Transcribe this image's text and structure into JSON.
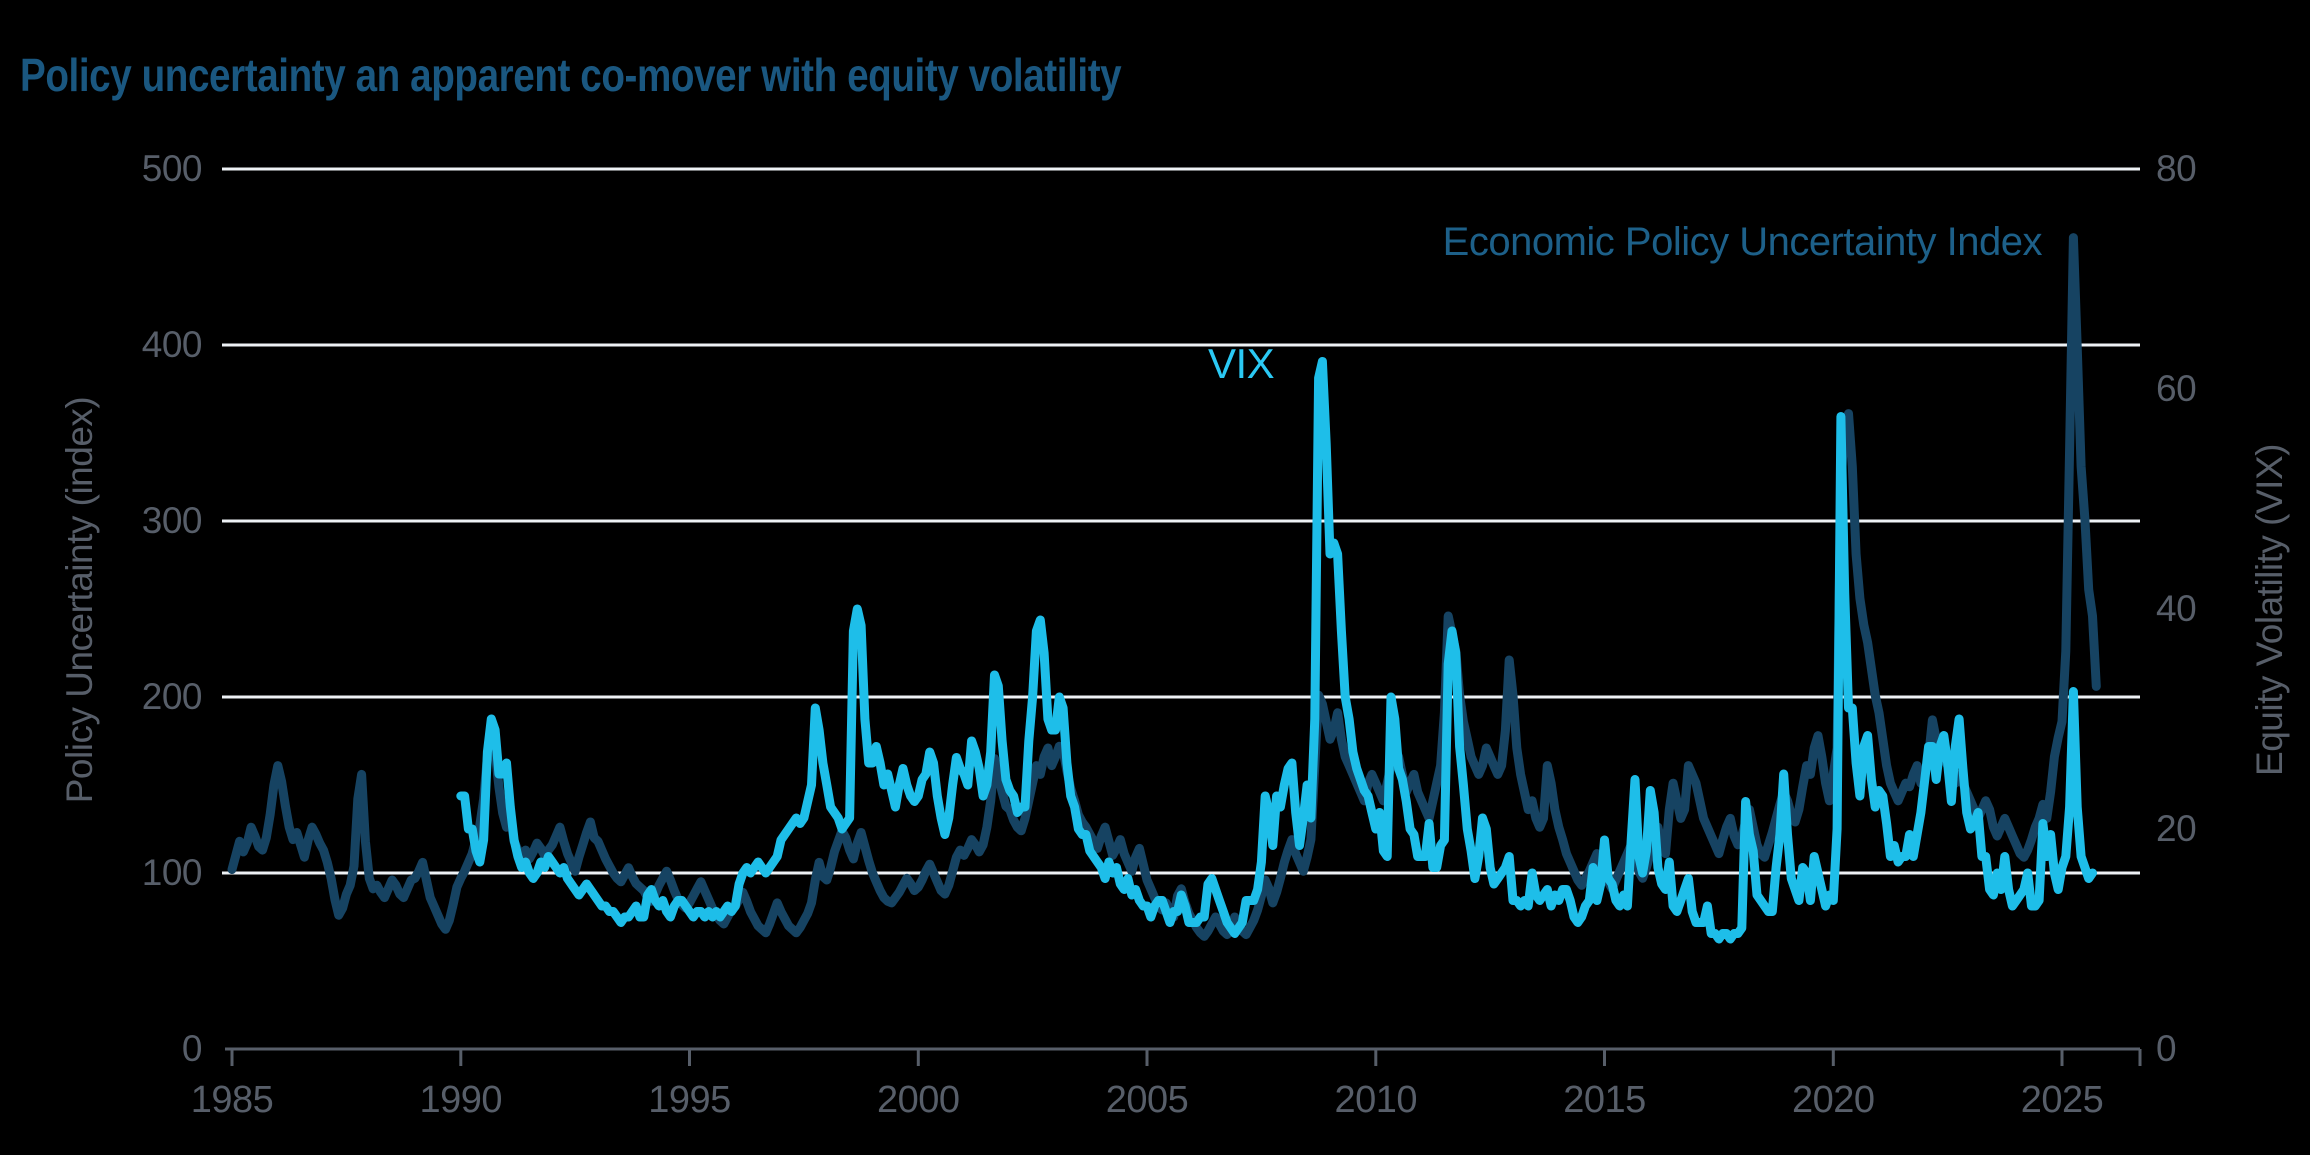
{
  "title": "Policy uncertainty an apparent co-mover with equity volatility",
  "colors": {
    "background": "#000000",
    "title_text": "#1A5780",
    "axis_text": "#575E69",
    "axis_line": "#575E69",
    "gridline": "#EDF1F5",
    "epu_line": "#164362",
    "epu_label": "#1D6089",
    "vix_line": "#1EBEE9",
    "vix_label": "#2BC9F4"
  },
  "chart_data": {
    "type": "line",
    "title": "Policy uncertainty an apparent co-mover with equity volatility",
    "grid": "horizontal white gridlines at left-axis values 100-500, no vertical gridlines",
    "legend_position": "inline text annotations near each series",
    "x_axis": {
      "min": 1985,
      "max": 2026.7,
      "tick_years": [
        1985,
        1990,
        1995,
        2000,
        2005,
        2010,
        2015,
        2020,
        2025
      ]
    },
    "left_axis": {
      "label": "Policy Uncertainty (index)",
      "min": 0,
      "max": 500,
      "ticks": [
        0,
        100,
        200,
        300,
        400,
        500
      ]
    },
    "right_axis": {
      "label": "Equity Volatility (VIX)",
      "min": 0,
      "max": 80,
      "ticks": [
        0,
        20,
        40,
        60,
        80
      ]
    },
    "series": [
      {
        "name": "Economic Policy Uncertainty Index",
        "axis": "left",
        "color": "#164362",
        "start_year": 1985,
        "frequency": "monthly",
        "values": [
          102,
          110,
          118,
          112,
          117,
          126,
          121,
          115,
          113,
          120,
          133,
          150,
          161,
          152,
          138,
          126,
          119,
          123,
          116,
          109,
          119,
          126,
          122,
          117,
          113,
          106,
          97,
          85,
          76,
          80,
          88,
          93,
          104,
          142,
          156,
          118,
          97,
          91,
          93,
          89,
          86,
          91,
          96,
          93,
          88,
          86,
          91,
          96,
          97,
          101,
          106,
          96,
          86,
          81,
          76,
          71,
          68,
          73,
          82,
          92,
          97,
          101,
          106,
          111,
          119,
          127,
          142,
          166,
          177,
          169,
          149,
          134,
          126,
          133,
          118,
          113,
          110,
          113,
          108,
          112,
          117,
          114,
          110,
          113,
          116,
          121,
          126,
          118,
          111,
          106,
          101,
          109,
          116,
          123,
          129,
          120,
          118,
          113,
          108,
          104,
          100,
          97,
          95,
          99,
          103,
          98,
          94,
          92,
          90,
          86,
          84,
          88,
          93,
          97,
          101,
          96,
          90,
          85,
          82,
          80,
          83,
          87,
          91,
          95,
          90,
          85,
          80,
          76,
          73,
          71,
          75,
          79,
          81,
          85,
          89,
          84,
          78,
          74,
          70,
          68,
          66,
          71,
          77,
          83,
          78,
          74,
          70,
          68,
          66,
          69,
          73,
          77,
          83,
          96,
          106,
          98,
          96,
          103,
          112,
          118,
          124,
          120,
          113,
          108,
          117,
          123,
          115,
          107,
          100,
          95,
          90,
          86,
          84,
          83,
          86,
          89,
          93,
          97,
          94,
          90,
          92,
          96,
          101,
          105,
          100,
          95,
          90,
          88,
          93,
          101,
          109,
          113,
          110,
          114,
          119,
          116,
          112,
          116,
          126,
          141,
          165,
          155,
          146,
          138,
          136,
          130,
          126,
          124,
          131,
          141,
          151,
          161,
          156,
          166,
          171,
          161,
          166,
          172,
          170,
          158,
          148,
          141,
          133,
          129,
          126,
          122,
          118,
          114,
          121,
          126,
          118,
          110,
          114,
          119,
          111,
          106,
          101,
          109,
          114,
          105,
          96,
          91,
          86,
          81,
          79,
          83,
          79,
          75,
          87,
          91,
          83,
          77,
          73,
          69,
          66,
          64,
          67,
          71,
          75,
          71,
          67,
          65,
          69,
          75,
          71,
          67,
          65,
          69,
          73,
          79,
          87,
          96,
          91,
          83,
          89,
          97,
          106,
          113,
          119,
          111,
          106,
          101,
          109,
          119,
          161,
          201,
          196,
          186,
          176,
          181,
          191,
          176,
          166,
          161,
          156,
          151,
          146,
          141,
          151,
          156,
          151,
          146,
          141,
          151,
          161,
          171,
          166,
          156,
          146,
          151,
          156,
          146,
          141,
          136,
          131,
          141,
          151,
          161,
          191,
          246,
          236,
          226,
          201,
          186,
          176,
          166,
          161,
          156,
          161,
          171,
          166,
          161,
          156,
          161,
          181,
          221,
          201,
          171,
          156,
          146,
          136,
          141,
          131,
          126,
          131,
          161,
          151,
          136,
          126,
          119,
          111,
          106,
          101,
          96,
          93,
          97,
          101,
          106,
          111,
          103,
          99,
          95,
          91,
          96,
          101,
          106,
          111,
          116,
          109,
          101,
          97,
          103,
          111,
          119,
          126,
          116,
          111,
          136,
          151,
          141,
          131,
          136,
          161,
          156,
          151,
          141,
          131,
          126,
          121,
          116,
          111,
          119,
          126,
          131,
          121,
          116,
          121,
          129,
          136,
          126,
          116,
          111,
          109,
          116,
          123,
          131,
          139,
          146,
          141,
          133,
          129,
          136,
          149,
          161,
          156,
          171,
          178,
          166,
          151,
          141,
          156,
          171,
          321,
          356,
          361,
          331,
          281,
          256,
          241,
          231,
          216,
          201,
          191,
          176,
          161,
          151,
          146,
          141,
          146,
          151,
          149,
          156,
          161,
          151,
          156,
          166,
          187,
          176,
          171,
          166,
          161,
          156,
          151,
          156,
          151,
          146,
          141,
          136,
          131,
          136,
          141,
          136,
          126,
          121,
          126,
          131,
          126,
          121,
          116,
          111,
          109,
          113,
          119,
          126,
          131,
          139,
          131,
          146,
          166,
          177,
          186,
          226,
          341,
          461,
          399,
          331,
          301,
          261,
          246,
          206
        ]
      },
      {
        "name": "VIX",
        "axis": "right",
        "color": "#1EBEE9",
        "start_year": 1990,
        "frequency": "monthly",
        "values": [
          23,
          23,
          20,
          20,
          18,
          17,
          19,
          27,
          30,
          29,
          25,
          25,
          26,
          22,
          19,
          17.5,
          16.5,
          17,
          16,
          15.5,
          16,
          17,
          16.5,
          17.5,
          17,
          16.5,
          16,
          16.5,
          15.5,
          15,
          14.5,
          14,
          14.5,
          15,
          14.5,
          14,
          13.5,
          13,
          13,
          12.5,
          12.5,
          12,
          11.5,
          12,
          12,
          12.5,
          13,
          12,
          12,
          14,
          14.5,
          13.5,
          13,
          13.5,
          12.5,
          12,
          13,
          13.5,
          13.5,
          13,
          12.5,
          12,
          12.5,
          12.5,
          12,
          12.5,
          12,
          12.5,
          12,
          12.5,
          13,
          12.5,
          13,
          15,
          16,
          16.5,
          16,
          16.5,
          17,
          16.5,
          16,
          16.5,
          17,
          17.5,
          19,
          19.5,
          20,
          20.5,
          21,
          20.5,
          21,
          22.5,
          24,
          31,
          29,
          26,
          24,
          22,
          21.5,
          21,
          20,
          20.5,
          21,
          38,
          40,
          38.5,
          30,
          26,
          26,
          27.5,
          26,
          24,
          25,
          23.5,
          22,
          24,
          25.5,
          24,
          23,
          22.5,
          23,
          24.5,
          25,
          27,
          26,
          23,
          21,
          19.5,
          21,
          24,
          26.5,
          25.5,
          25,
          24,
          28,
          27,
          25.5,
          23,
          24,
          27,
          34,
          33,
          28,
          24.5,
          23.5,
          23,
          21.5,
          22,
          22,
          28,
          32,
          38,
          39,
          36,
          30,
          29,
          29,
          32,
          31,
          26,
          23,
          22,
          20,
          19.5,
          19.5,
          18,
          17.5,
          17,
          16.5,
          15.5,
          17,
          16,
          16.5,
          15,
          14.5,
          15.5,
          14,
          14.5,
          13.5,
          13,
          13,
          12,
          13,
          13.5,
          13.5,
          12.5,
          11.5,
          12.5,
          12.5,
          14,
          13,
          11.5,
          11.5,
          11.5,
          12,
          12,
          15,
          15.5,
          14.5,
          13.5,
          12.5,
          11.5,
          11,
          10.5,
          11,
          11.5,
          13.5,
          13.5,
          13.5,
          14.5,
          17,
          23,
          21.5,
          18.5,
          23,
          22,
          24,
          25.5,
          26,
          21.5,
          18.5,
          21,
          24,
          21,
          30,
          61,
          62.5,
          55,
          45,
          46,
          45,
          38,
          32,
          30,
          27,
          25.5,
          24.5,
          23.5,
          23,
          21.5,
          20,
          21.5,
          18,
          17.5,
          32,
          30,
          25.5,
          24.5,
          22.5,
          20,
          19.5,
          17.5,
          17.5,
          17.5,
          20.5,
          16.5,
          16.5,
          18.5,
          19,
          35,
          38,
          36,
          27.5,
          24,
          20,
          18,
          15.5,
          17.5,
          21,
          20,
          16.5,
          15,
          15.5,
          16,
          16.5,
          17.5,
          13.5,
          13.5,
          13,
          13.5,
          13,
          16,
          14,
          13.5,
          14,
          14.5,
          13,
          14,
          13.5,
          14.5,
          14.5,
          13.5,
          12,
          11.5,
          12,
          13,
          13.5,
          16.5,
          13.5,
          15,
          19,
          15.5,
          15,
          13.5,
          13,
          14,
          13,
          19,
          24.5,
          17.5,
          16,
          18,
          23.5,
          21.5,
          16.5,
          15,
          14.5,
          17,
          13,
          12.5,
          13.5,
          14.5,
          15.5,
          12.5,
          11.5,
          11.5,
          11.5,
          13,
          10.5,
          10.5,
          10,
          10.5,
          10.5,
          10,
          10.5,
          10.5,
          11,
          22.5,
          19.5,
          18,
          14,
          13.5,
          13,
          12.5,
          12.5,
          16.5,
          19.5,
          25,
          19.5,
          15.5,
          14.5,
          13.5,
          16.5,
          16,
          13.5,
          17.5,
          16,
          14.5,
          13,
          14,
          13.5,
          20,
          57.5,
          41.5,
          31,
          31,
          26,
          23,
          27.5,
          28.5,
          24.5,
          22,
          23.5,
          23,
          20.5,
          17.5,
          18.5,
          17,
          17.5,
          17.5,
          19.5,
          17.5,
          19.5,
          21.5,
          24.5,
          27.5,
          27.5,
          24.5,
          27.5,
          28.5,
          26,
          22.5,
          27.5,
          30,
          25.5,
          21.5,
          20,
          20.5,
          21.5,
          17.5,
          17.5,
          14.5,
          14,
          16,
          14.5,
          17.5,
          14.5,
          13,
          13.5,
          14,
          14.5,
          16,
          13,
          13,
          13.5,
          20.5,
          17.5,
          19.5,
          16,
          14.5,
          16.5,
          17.5,
          22,
          32.5,
          22,
          17.5,
          16.5,
          15.5,
          16
        ]
      }
    ]
  }
}
